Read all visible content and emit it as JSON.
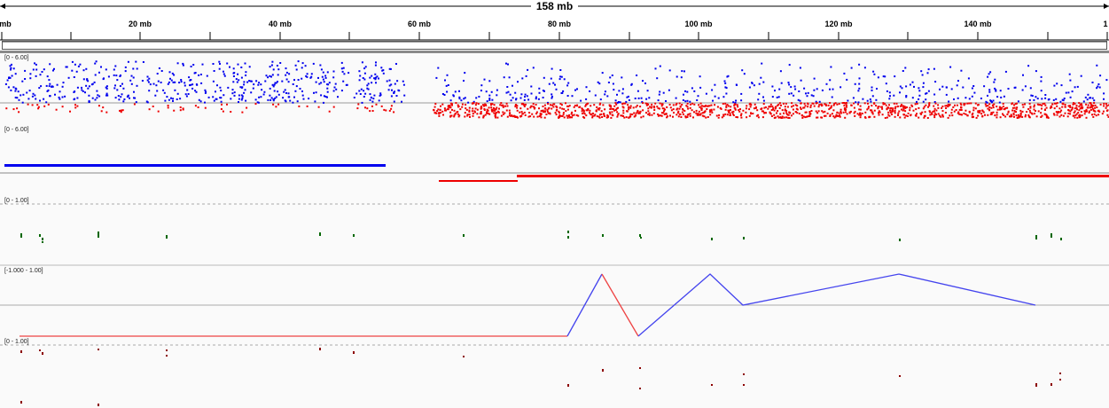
{
  "ruler": {
    "span_label": "158 mb",
    "tick_labels": [
      "mb",
      "20 mb",
      "40 mb",
      "60 mb",
      "80 mb",
      "100 mb",
      "120 mb",
      "140 mb",
      "1"
    ]
  },
  "tracks": [
    {
      "name": "copy-number-scatter",
      "range": "[0 - 6.00]"
    },
    {
      "name": "segment-track",
      "range": "[0 - 6.00]"
    },
    {
      "name": "green-marks-track",
      "range": "[0 - 1.00]"
    },
    {
      "name": "line-track",
      "range": "[-1.000 - 1.00]"
    },
    {
      "name": "dark-red-marks-track",
      "range": "[0 - 1.00]"
    }
  ],
  "colors": {
    "gain": "#0000ee",
    "loss": "#ee0000",
    "green": "#006600",
    "darkred": "#8b0000",
    "line_blue": "#4444ee",
    "line_red": "#ee4444"
  }
}
